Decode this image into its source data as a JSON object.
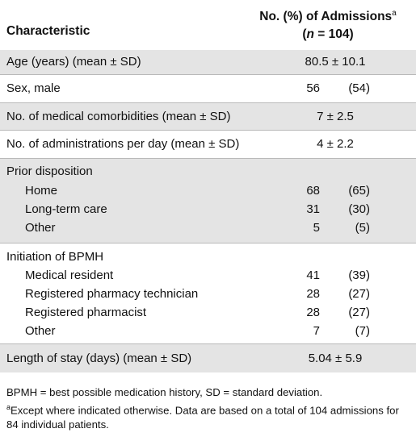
{
  "header": {
    "characteristic": "Characteristic",
    "admissions_title": "No. (%) of Admissions",
    "admissions_sup": "a",
    "n_italic": "n",
    "n_value": " = 104",
    "open_paren": "(",
    "close_paren": ")"
  },
  "rows": {
    "age": {
      "label": "Age (years) (mean ± SD)",
      "value": "80.5 ± 10.1"
    },
    "sex": {
      "label": "Sex, male",
      "count": "56",
      "percent": "(54)"
    },
    "comorbidities": {
      "label": "No. of medical comorbidities (mean ± SD)",
      "value": "7 ± 2.5"
    },
    "administrations": {
      "label": "No. of administrations per day (mean ± SD)",
      "value": "4 ± 2.2"
    },
    "prior_disposition": {
      "label": "Prior disposition",
      "items": [
        {
          "label": "Home",
          "count": "68",
          "percent": "(65)"
        },
        {
          "label": "Long-term care",
          "count": "31",
          "percent": "(30)"
        },
        {
          "label": "Other",
          "count": "5",
          "percent": "(5)"
        }
      ]
    },
    "initiation": {
      "label": "Initiation of BPMH",
      "items": [
        {
          "label": "Medical resident",
          "count": "41",
          "percent": "(39)"
        },
        {
          "label": "Registered pharmacy technician",
          "count": "28",
          "percent": "(27)"
        },
        {
          "label": "Registered pharmacist",
          "count": "28",
          "percent": "(27)"
        },
        {
          "label": "Other",
          "count": "7",
          "percent": "(7)"
        }
      ]
    },
    "length_of_stay": {
      "label": "Length of stay (days) (mean ± SD)",
      "value": "5.04 ± 5.9"
    }
  },
  "footnotes": {
    "abbreviations": "BPMH = best possible medication history, SD = standard deviation.",
    "a_marker": "a",
    "a_text": "Except where indicated otherwise. Data are based on a total of 104 admissions for 84 individual patients."
  }
}
